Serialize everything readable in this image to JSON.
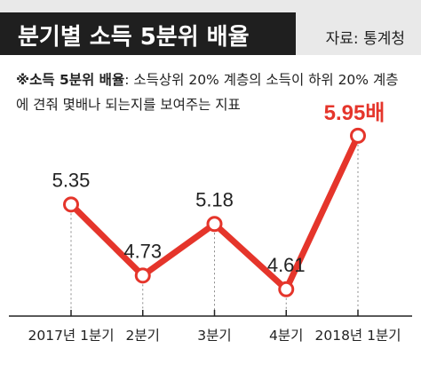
{
  "header": {
    "title": "분기별 소득 5분위 배율",
    "source": "자료: 통계청"
  },
  "note": {
    "key": "※소득 5분위 배율",
    "text": ": 소득상위 20% 계층의 소득이 하위 20% 계층에 견줘 몇배나 되는지를 보여주는 지표"
  },
  "chart_data": {
    "type": "line",
    "categories": [
      "2017년 1분기",
      "2분기",
      "3분기",
      "4분기",
      "2018년 1분기"
    ],
    "series": [
      {
        "values": [
          5.35,
          4.73,
          5.18,
          4.61,
          5.95
        ],
        "labels": [
          "5.35",
          "4.73",
          "5.18",
          "4.61",
          "5.95배"
        ]
      }
    ],
    "highlight_index": 4,
    "ylim": [
      4.5,
      6.05
    ],
    "grid": false,
    "colors": {
      "line": "#e5352b",
      "marker_fill": "#ffffff",
      "highlight_label": "#e5352b",
      "axis": "#222222",
      "guide": "#888888"
    }
  }
}
